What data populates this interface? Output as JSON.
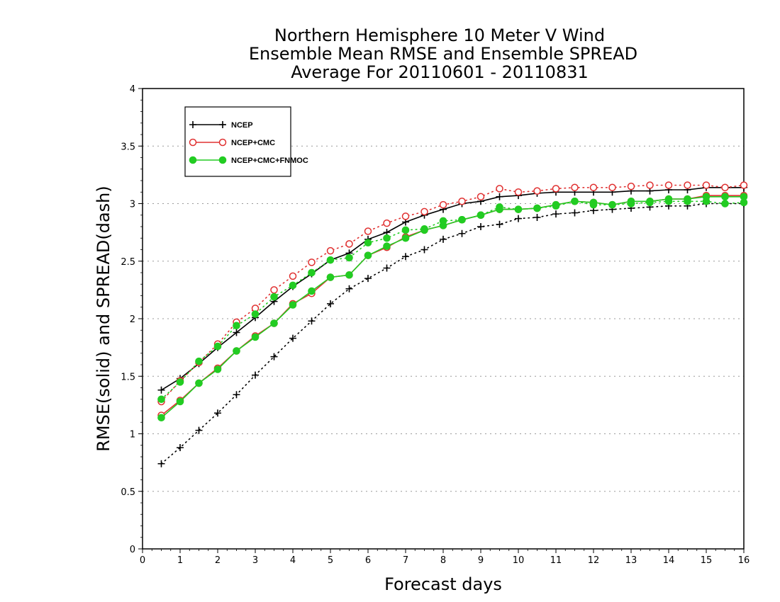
{
  "chart_data": {
    "type": "line",
    "title": [
      "Northern Hemisphere 10 Meter V Wind",
      "Ensemble Mean RMSE and Ensemble SPREAD",
      "Average For 20110601 - 20110831"
    ],
    "xlabel": "Forecast days",
    "ylabel": "RMSE(solid) and SPREAD(dash)",
    "xlim": [
      0,
      16
    ],
    "ylim": [
      0,
      4
    ],
    "xticks": [
      0,
      1,
      2,
      3,
      4,
      5,
      6,
      7,
      8,
      9,
      10,
      11,
      12,
      13,
      14,
      15,
      16
    ],
    "yticks": [
      0,
      0.5,
      1,
      1.5,
      2,
      2.5,
      3,
      3.5,
      4
    ],
    "ytick_labels": [
      "0",
      "0.5",
      "1",
      "1.5",
      "2",
      "2.5",
      "3",
      "3.5",
      "4"
    ],
    "grid": "horizontal dotted",
    "legend_position": "top-left",
    "x": [
      0.5,
      1,
      1.5,
      2,
      2.5,
      3,
      3.5,
      4,
      4.5,
      5,
      5.5,
      6,
      6.5,
      7,
      7.5,
      8,
      8.5,
      9,
      9.5,
      10,
      10.5,
      11,
      11.5,
      12,
      12.5,
      13,
      13.5,
      14,
      14.5,
      15,
      15.5,
      16
    ],
    "series": [
      {
        "name": "NCEP",
        "color": "#000000",
        "marker": "plus",
        "rmse": [
          1.38,
          1.48,
          1.61,
          1.75,
          1.88,
          2.01,
          2.15,
          2.28,
          2.39,
          2.51,
          2.57,
          2.69,
          2.75,
          2.84,
          2.9,
          2.95,
          3.0,
          3.02,
          3.06,
          3.07,
          3.09,
          3.1,
          3.1,
          3.1,
          3.1,
          3.11,
          3.11,
          3.12,
          3.12,
          3.14,
          3.14,
          3.14
        ],
        "spread": [
          0.74,
          0.88,
          1.03,
          1.18,
          1.34,
          1.51,
          1.67,
          1.83,
          1.98,
          2.13,
          2.26,
          2.35,
          2.44,
          2.54,
          2.6,
          2.69,
          2.74,
          2.8,
          2.82,
          2.87,
          2.88,
          2.91,
          2.92,
          2.94,
          2.95,
          2.96,
          2.97,
          2.98,
          2.98,
          3.0,
          3.0,
          3.0
        ]
      },
      {
        "name": "NCEP+CMC",
        "color": "#e03030",
        "marker": "open-circle",
        "rmse": [
          1.16,
          1.29,
          1.44,
          1.57,
          1.72,
          1.85,
          1.96,
          2.13,
          2.22,
          2.36,
          2.38,
          2.55,
          2.62,
          2.71,
          2.77,
          2.81,
          2.86,
          2.9,
          2.95,
          2.95,
          2.96,
          2.99,
          3.02,
          3.01,
          2.99,
          3.02,
          3.02,
          3.04,
          3.04,
          3.07,
          3.07,
          3.07
        ],
        "spread": [
          1.28,
          1.46,
          1.62,
          1.78,
          1.97,
          2.09,
          2.25,
          2.37,
          2.49,
          2.59,
          2.65,
          2.76,
          2.83,
          2.89,
          2.93,
          2.99,
          3.02,
          3.06,
          3.13,
          3.1,
          3.11,
          3.13,
          3.14,
          3.14,
          3.14,
          3.15,
          3.16,
          3.16,
          3.16,
          3.16,
          3.14,
          3.16
        ]
      },
      {
        "name": "NCEP+CMC+FNMOC",
        "color": "#22cc22",
        "marker": "filled-circle",
        "rmse": [
          1.14,
          1.28,
          1.44,
          1.56,
          1.72,
          1.84,
          1.96,
          2.12,
          2.24,
          2.36,
          2.38,
          2.55,
          2.63,
          2.7,
          2.77,
          2.81,
          2.86,
          2.9,
          2.95,
          2.95,
          2.96,
          2.99,
          3.02,
          3.01,
          2.99,
          3.02,
          3.02,
          3.04,
          3.04,
          3.06,
          3.06,
          3.06
        ],
        "spread": [
          1.3,
          1.45,
          1.63,
          1.76,
          1.94,
          2.04,
          2.19,
          2.29,
          2.4,
          2.51,
          2.53,
          2.66,
          2.7,
          2.77,
          2.78,
          2.85,
          2.86,
          2.9,
          2.97,
          2.95,
          2.96,
          2.98,
          3.02,
          2.99,
          2.99,
          3.0,
          3.01,
          3.02,
          3.02,
          3.02,
          3.0,
          3.01
        ]
      }
    ]
  }
}
